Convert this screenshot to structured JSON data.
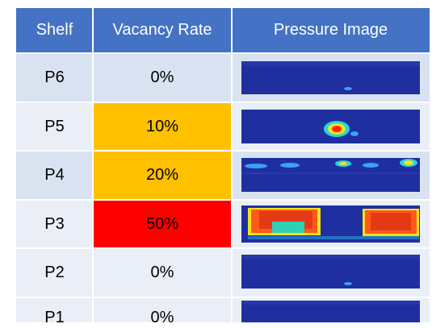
{
  "table": {
    "headers": [
      "Shelf",
      "Vacancy Rate",
      "Pressure Image"
    ],
    "rows": [
      {
        "shelf": "P6",
        "vacancy": "0%",
        "highlight": "#d9e2f1"
      },
      {
        "shelf": "P5",
        "vacancy": "10%",
        "highlight": "#ffc000"
      },
      {
        "shelf": "P4",
        "vacancy": "20%",
        "highlight": "#ffc000"
      },
      {
        "shelf": "P3",
        "vacancy": "50%",
        "highlight": "#ff0000"
      },
      {
        "shelf": "P2",
        "vacancy": "0%",
        "highlight": "#e9eef7"
      },
      {
        "shelf": "P1",
        "vacancy": "0%",
        "highlight": "#e9eef7"
      }
    ]
  },
  "colors": {
    "header_bg": "#4472c4",
    "row_band_dark": "#d9e2f1",
    "row_band_light": "#e9eef7",
    "heat_background": "#1f2f9f",
    "heat_hot": "#ff2a00"
  }
}
